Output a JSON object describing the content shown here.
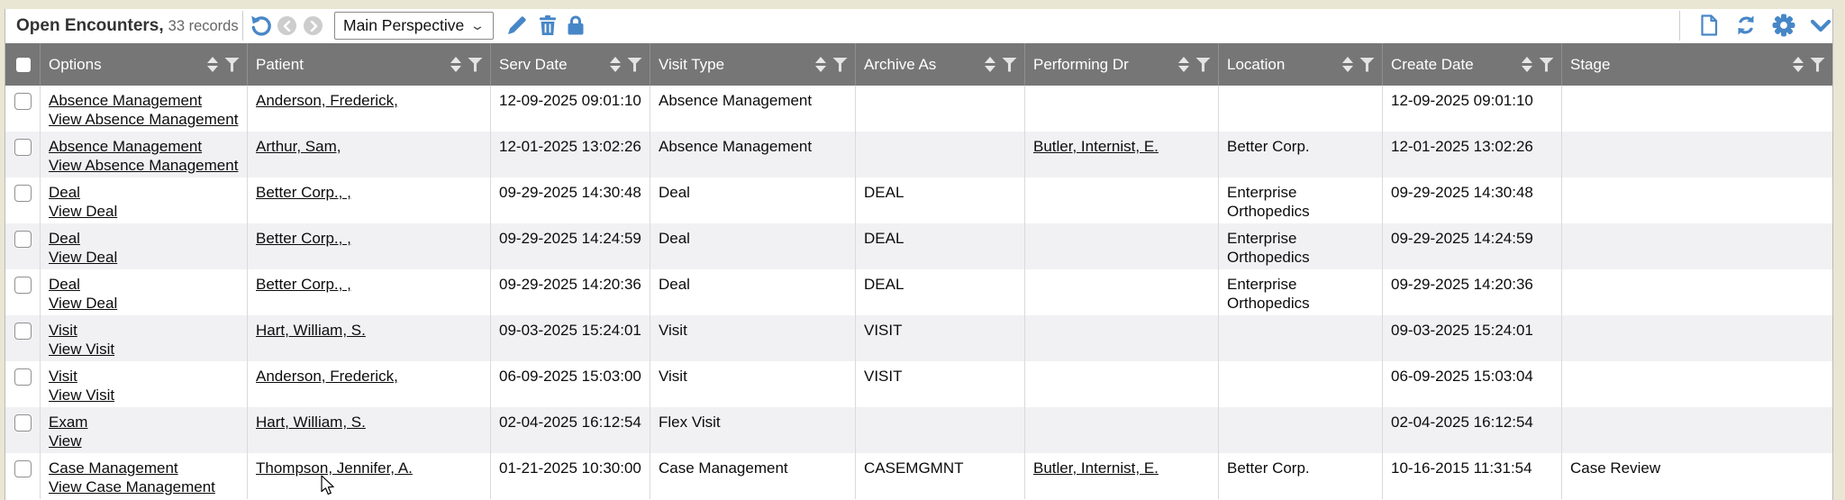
{
  "toolbar": {
    "title": "Open Encounters,",
    "record_count": "33 records",
    "perspective_selected": "Main Perspective"
  },
  "icons": {
    "undo-icon": "circular rotate-left arrow",
    "nav-back-icon": "chevron-left in gray circle",
    "nav-forward-icon": "chevron-right in gray circle",
    "pencil-icon": "edit pencil",
    "trash-icon": "delete trash can",
    "lock-icon": "padlock",
    "document-icon": "new blank document",
    "refresh-icon": "two circular arrows",
    "gear-icon": "settings gear",
    "chevron-down-icon": "collapse chevron",
    "sort-icon": "up/down triangles",
    "filter-icon": "funnel"
  },
  "colors": {
    "accent_blue": "#4787c7",
    "header_gray": "#767676",
    "alt_row": "#f1f1f4",
    "frame_beige": "#eae6d4",
    "grid_line": "#dadada"
  },
  "table": {
    "columns": [
      {
        "key": "select",
        "label": ""
      },
      {
        "key": "options",
        "label": "Options"
      },
      {
        "key": "patient",
        "label": "Patient"
      },
      {
        "key": "serv_date",
        "label": "Serv Date"
      },
      {
        "key": "visit_type",
        "label": "Visit Type"
      },
      {
        "key": "archive_as",
        "label": "Archive As"
      },
      {
        "key": "performing_dr",
        "label": "Performing Dr"
      },
      {
        "key": "location",
        "label": "Location"
      },
      {
        "key": "create_date",
        "label": "Create Date"
      },
      {
        "key": "stage",
        "label": "Stage"
      }
    ],
    "rows": [
      {
        "options": [
          "Absence Management",
          "View Absence Management"
        ],
        "patient": "Anderson, Frederick,",
        "serv_date": "12-09-2025 09:01:10",
        "visit_type": "Absence Management",
        "archive_as": "",
        "performing_dr": "",
        "location": "",
        "create_date": "12-09-2025 09:01:10",
        "stage": ""
      },
      {
        "options": [
          "Absence Management",
          "View Absence Management"
        ],
        "patient": "Arthur, Sam,",
        "serv_date": "12-01-2025 13:02:26",
        "visit_type": "Absence Management",
        "archive_as": "",
        "performing_dr": "Butler, Internist, E.",
        "location": "Better Corp.",
        "create_date": "12-01-2025 13:02:26",
        "stage": ""
      },
      {
        "options": [
          "Deal",
          "View Deal"
        ],
        "patient": "Better Corp., ,",
        "serv_date": "09-29-2025 14:30:48",
        "visit_type": "Deal",
        "archive_as": "DEAL",
        "performing_dr": "",
        "location": "Enterprise Orthopedics",
        "create_date": "09-29-2025 14:30:48",
        "stage": ""
      },
      {
        "options": [
          "Deal",
          "View Deal"
        ],
        "patient": "Better Corp., ,",
        "serv_date": "09-29-2025 14:24:59",
        "visit_type": "Deal",
        "archive_as": "DEAL",
        "performing_dr": "",
        "location": "Enterprise Orthopedics",
        "create_date": "09-29-2025 14:24:59",
        "stage": ""
      },
      {
        "options": [
          "Deal",
          "View Deal"
        ],
        "patient": "Better Corp., ,",
        "serv_date": "09-29-2025 14:20:36",
        "visit_type": "Deal",
        "archive_as": "DEAL",
        "performing_dr": "",
        "location": "Enterprise Orthopedics",
        "create_date": "09-29-2025 14:20:36",
        "stage": ""
      },
      {
        "options": [
          "Visit",
          "View Visit"
        ],
        "patient": "Hart, William, S.",
        "serv_date": "09-03-2025 15:24:01",
        "visit_type": "Visit",
        "archive_as": "VISIT",
        "performing_dr": "",
        "location": "",
        "create_date": "09-03-2025 15:24:01",
        "stage": ""
      },
      {
        "options": [
          "Visit",
          "View Visit"
        ],
        "patient": "Anderson, Frederick,",
        "serv_date": "06-09-2025 15:03:00",
        "visit_type": "Visit",
        "archive_as": "VISIT",
        "performing_dr": "",
        "location": "",
        "create_date": "06-09-2025 15:03:04",
        "stage": ""
      },
      {
        "options": [
          "Exam",
          "View"
        ],
        "patient": "Hart, William, S.",
        "serv_date": "02-04-2025 16:12:54",
        "visit_type": "Flex Visit",
        "archive_as": "",
        "performing_dr": "",
        "location": "",
        "create_date": "02-04-2025 16:12:54",
        "stage": ""
      },
      {
        "options": [
          "Case Management",
          "View Case Management"
        ],
        "patient": "Thompson, Jennifer, A.",
        "serv_date": "01-21-2025 10:30:00",
        "visit_type": "Case Management",
        "archive_as": "CASEMGMNT",
        "performing_dr": "Butler, Internist, E.",
        "location": "Better Corp.",
        "create_date": "10-16-2015 11:31:54",
        "stage": "Case Review"
      }
    ]
  }
}
